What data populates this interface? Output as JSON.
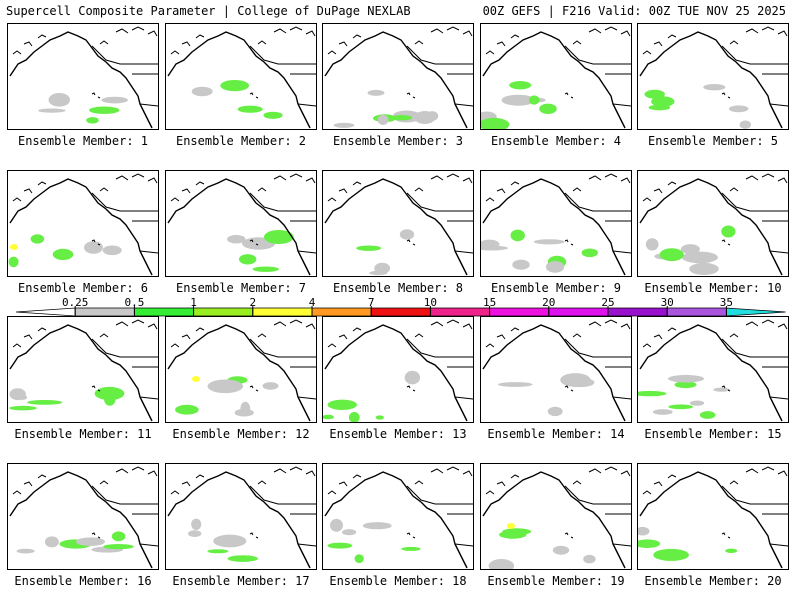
{
  "header": {
    "left": "Supercell Composite Parameter | College of DuPage NEXLAB",
    "right": "00Z GEFS | F216 Valid: 00Z TUE NOV 25 2025"
  },
  "panels": [
    {
      "label": "Ensemble Member: 1"
    },
    {
      "label": "Ensemble Member: 2"
    },
    {
      "label": "Ensemble Member: 3"
    },
    {
      "label": "Ensemble Member: 4"
    },
    {
      "label": "Ensemble Member: 5"
    },
    {
      "label": "Ensemble Member: 6"
    },
    {
      "label": "Ensemble Member: 7"
    },
    {
      "label": "Ensemble Member: 8"
    },
    {
      "label": "Ensemble Member: 9"
    },
    {
      "label": "Ensemble Member: 10"
    },
    {
      "label": "Ensemble Member: 11"
    },
    {
      "label": "Ensemble Member: 12"
    },
    {
      "label": "Ensemble Member: 13"
    },
    {
      "label": "Ensemble Member: 14"
    },
    {
      "label": "Ensemble Member: 15"
    },
    {
      "label": "Ensemble Member: 16"
    },
    {
      "label": "Ensemble Member: 17"
    },
    {
      "label": "Ensemble Member: 18"
    },
    {
      "label": "Ensemble Member: 19"
    },
    {
      "label": "Ensemble Member: 20"
    }
  ],
  "colorbar": {
    "ticks": [
      "0.25",
      "0.5",
      "1",
      "2",
      "4",
      "7",
      "10",
      "15",
      "20",
      "25",
      "30",
      "35"
    ],
    "colors": [
      "#c8c8c8",
      "#33ee33",
      "#99ee22",
      "#ffff33",
      "#ff9922",
      "#ee1111",
      "#ee2288",
      "#ee11dd",
      "#dd11ee",
      "#9911cc",
      "#aa55dd",
      "#22dddd"
    ]
  }
}
